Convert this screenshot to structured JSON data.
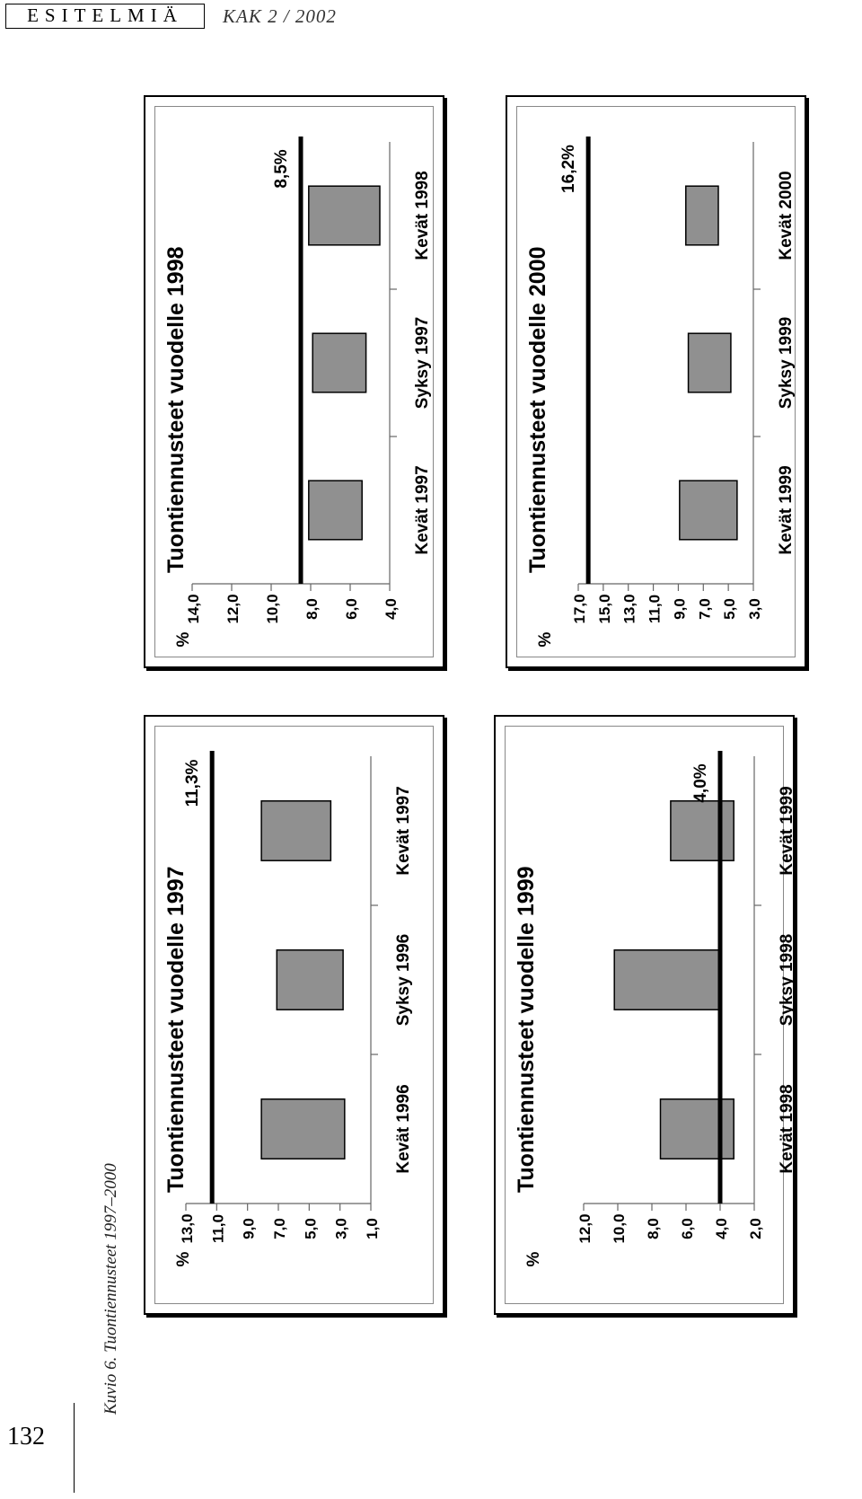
{
  "header": {
    "section": "ESITELMIÄ",
    "journal": "KAK 2 / 2002"
  },
  "caption": "Kuvio 6. Tuontiennusteet 1997–2000",
  "page_number": "132",
  "chart_data": [
    {
      "type": "bar",
      "title": "Tuontiennusteet vuodelle 1997",
      "ylabel": "%",
      "ylim": [
        1,
        13
      ],
      "yticks": [
        "13,0",
        "11,0",
        "9,0",
        "7,0",
        "5,0",
        "3,0",
        "1,0"
      ],
      "categories": [
        "Kevät 1996",
        "Syksy 1996",
        "Kevät 1997"
      ],
      "ranges": [
        [
          2.7,
          8.1
        ],
        [
          2.8,
          7.1
        ],
        [
          3.6,
          8.1
        ]
      ],
      "reference": 11.3,
      "reference_label": "11,3%",
      "bar_color": "#909090"
    },
    {
      "type": "bar",
      "title": "Tuontiennusteet vuodelle 1998",
      "ylabel": "%",
      "ylim": [
        4,
        14
      ],
      "yticks": [
        "14,0",
        "12,0",
        "10,0",
        "8,0",
        "6,0",
        "4,0"
      ],
      "categories": [
        "Kevät 1997",
        "Syksy 1997",
        "Kevät 1998"
      ],
      "ranges": [
        [
          5.4,
          8.1
        ],
        [
          5.2,
          7.9
        ],
        [
          4.5,
          8.1
        ]
      ],
      "reference": 8.5,
      "reference_label": "8,5%",
      "bar_color": "#909090"
    },
    {
      "type": "bar",
      "title": "Tuontiennusteet vuodelle 1999",
      "ylabel": "%",
      "ylim": [
        2,
        12
      ],
      "yticks": [
        "12,0",
        "10,0",
        "8,0",
        "6,0",
        "4,0",
        "2,0"
      ],
      "categories": [
        "Kevät 1998",
        "Syksy 1998",
        "Kevät 1999"
      ],
      "ranges": [
        [
          3.2,
          7.5
        ],
        [
          4.0,
          10.2
        ],
        [
          3.2,
          6.9
        ]
      ],
      "reference": 4.0,
      "reference_label": "4,0%",
      "bar_color": "#909090"
    },
    {
      "type": "bar",
      "title": "Tuontiennusteet vuodelle 2000",
      "ylabel": "%",
      "ylim": [
        3,
        17
      ],
      "yticks": [
        "17,0",
        "15,0",
        "13,0",
        "11,0",
        "9,0",
        "7,0",
        "5,0",
        "3,0"
      ],
      "categories": [
        "Kevät 1999",
        "Syksy 1999",
        "Kevät 2000"
      ],
      "ranges": [
        [
          4.3,
          8.9
        ],
        [
          4.8,
          8.2
        ],
        [
          8.4,
          5.8
        ]
      ],
      "reference": 16.2,
      "reference_label": "16,2%",
      "bar_color": "#909090"
    }
  ]
}
